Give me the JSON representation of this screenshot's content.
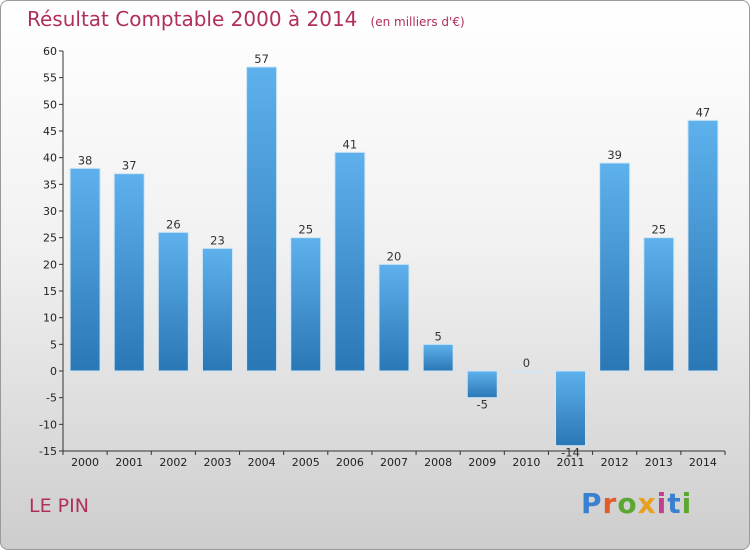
{
  "header": {
    "title": "Résultat Comptable 2000 à 2014",
    "subtitle": "(en milliers d'€)"
  },
  "place_name": "LE PIN",
  "logo": {
    "text": "Proxiti",
    "letter_colors": [
      "#3b7fd0",
      "#e25c2b",
      "#5aa832",
      "#e8a020",
      "#c03f8f",
      "#3b7fd0",
      "#5aa832"
    ]
  },
  "chart_data": {
    "type": "bar",
    "title": "Résultat Comptable 2000 à 2014",
    "xlabel": "",
    "ylabel": "",
    "categories": [
      "2000",
      "2001",
      "2002",
      "2003",
      "2004",
      "2005",
      "2006",
      "2007",
      "2008",
      "2009",
      "2010",
      "2011",
      "2012",
      "2013",
      "2014"
    ],
    "values": [
      38,
      37,
      26,
      23,
      57,
      25,
      41,
      20,
      5,
      -5,
      0,
      -14,
      39,
      25,
      47
    ],
    "ylim": [
      -15,
      60
    ],
    "yticks": [
      -15,
      -10,
      -5,
      0,
      5,
      10,
      15,
      20,
      25,
      30,
      35,
      40,
      45,
      50,
      55,
      60
    ],
    "grid": false,
    "bar_color_light": "#5eb1ec",
    "bar_color_dark": "#2a77b5"
  }
}
